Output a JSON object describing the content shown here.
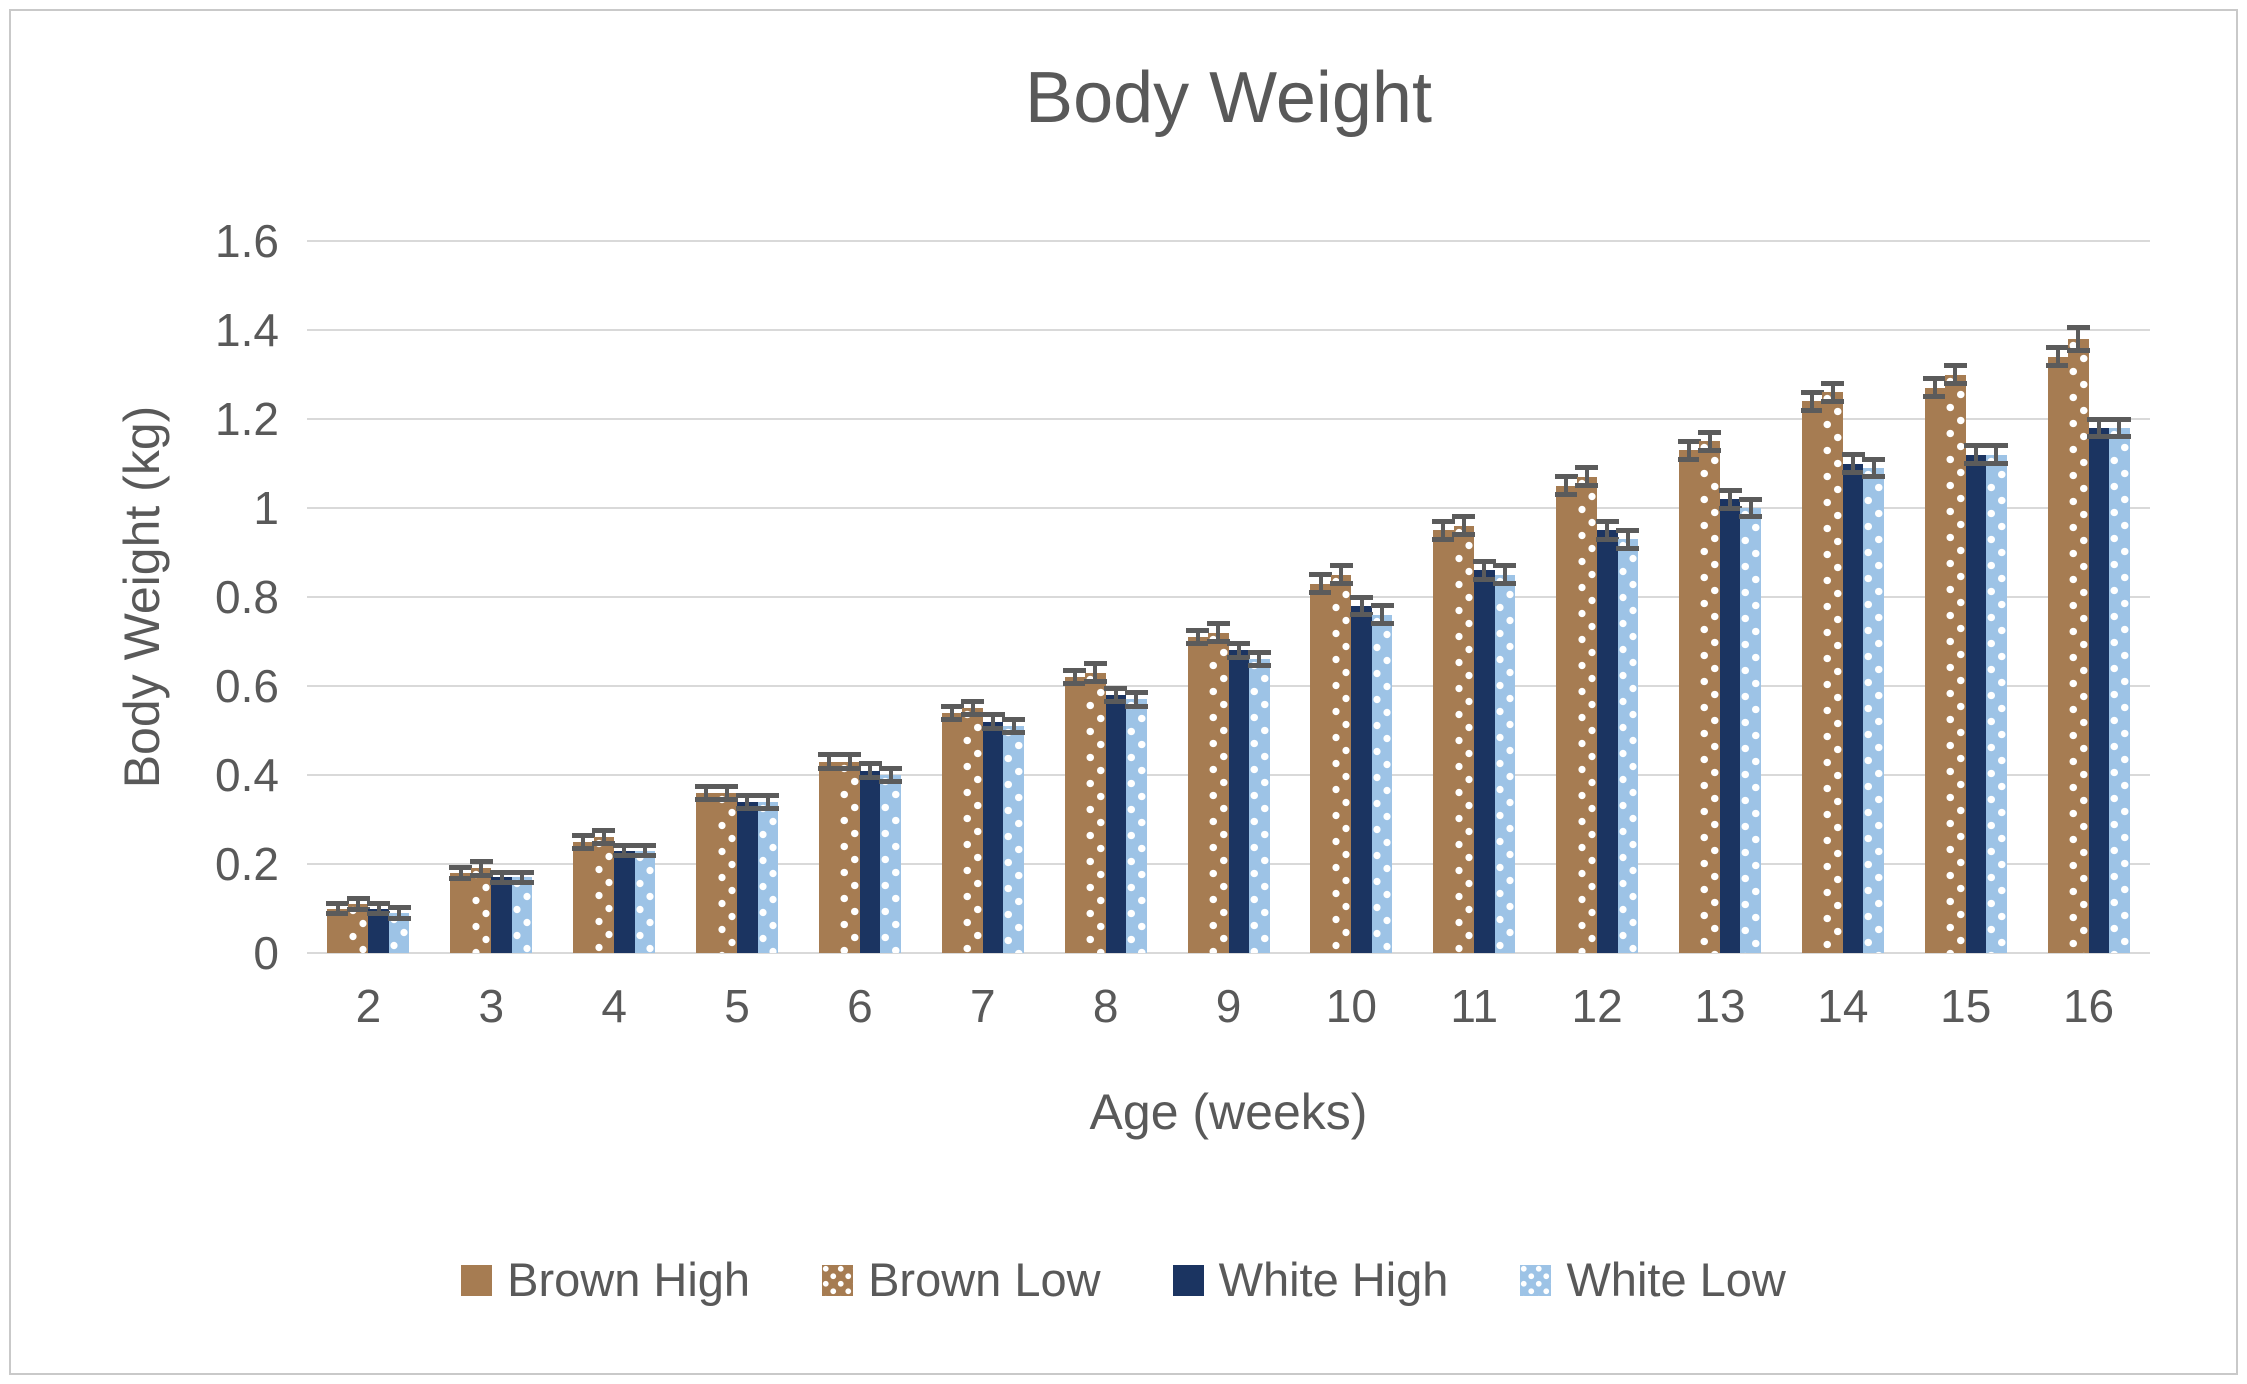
{
  "chart_data": {
    "type": "bar",
    "title": "Body Weight",
    "xlabel": "Age (weeks)",
    "ylabel": "Body Weight (kg)",
    "categories": [
      "2",
      "3",
      "4",
      "5",
      "6",
      "7",
      "8",
      "9",
      "10",
      "11",
      "12",
      "13",
      "14",
      "15",
      "16"
    ],
    "yticks": [
      "0",
      "0.2",
      "0.4",
      "0.6",
      "0.8",
      "1",
      "1.2",
      "1.4",
      "1.6"
    ],
    "ylim": [
      0,
      1.6
    ],
    "ytick_step": 0.2,
    "grid": true,
    "legend_position": "bottom",
    "error_bars": true,
    "series": [
      {
        "name": "Brown High",
        "pattern": "solid",
        "color": "#A67C52",
        "values": [
          0.1,
          0.18,
          0.25,
          0.36,
          0.43,
          0.54,
          0.62,
          0.71,
          0.83,
          0.95,
          1.05,
          1.13,
          1.24,
          1.27,
          1.34
        ],
        "errors": [
          0.012,
          0.012,
          0.015,
          0.015,
          0.015,
          0.015,
          0.015,
          0.015,
          0.02,
          0.02,
          0.02,
          0.02,
          0.02,
          0.02,
          0.02
        ]
      },
      {
        "name": "Brown Low",
        "pattern": "dotted",
        "color": "#A67C52",
        "dot_color": "#FFFFFF",
        "values": [
          0.11,
          0.19,
          0.26,
          0.36,
          0.43,
          0.55,
          0.63,
          0.72,
          0.85,
          0.96,
          1.07,
          1.15,
          1.26,
          1.3,
          1.38
        ],
        "errors": [
          0.012,
          0.015,
          0.015,
          0.015,
          0.015,
          0.015,
          0.02,
          0.02,
          0.02,
          0.02,
          0.02,
          0.02,
          0.02,
          0.02,
          0.025
        ]
      },
      {
        "name": "White High",
        "pattern": "solid",
        "color": "#1B3461",
        "values": [
          0.1,
          0.17,
          0.23,
          0.34,
          0.41,
          0.52,
          0.58,
          0.68,
          0.78,
          0.86,
          0.95,
          1.02,
          1.1,
          1.12,
          1.18
        ],
        "errors": [
          0.012,
          0.012,
          0.012,
          0.015,
          0.015,
          0.015,
          0.015,
          0.015,
          0.02,
          0.02,
          0.02,
          0.02,
          0.02,
          0.02,
          0.02
        ]
      },
      {
        "name": "White Low",
        "pattern": "dotted",
        "color": "#9DC3E6",
        "dot_color": "#FFFFFF",
        "values": [
          0.09,
          0.17,
          0.23,
          0.34,
          0.4,
          0.51,
          0.57,
          0.66,
          0.76,
          0.85,
          0.93,
          1.0,
          1.09,
          1.12,
          1.18
        ],
        "errors": [
          0.012,
          0.012,
          0.012,
          0.015,
          0.015,
          0.015,
          0.015,
          0.015,
          0.02,
          0.02,
          0.02,
          0.02,
          0.02,
          0.02,
          0.02
        ]
      }
    ],
    "colors": {
      "text": "#595959",
      "gridline": "#D9D9D9",
      "error_bar": "#5B5B5B",
      "border": "#C9C9C9",
      "background": "#FFFFFF"
    }
  }
}
